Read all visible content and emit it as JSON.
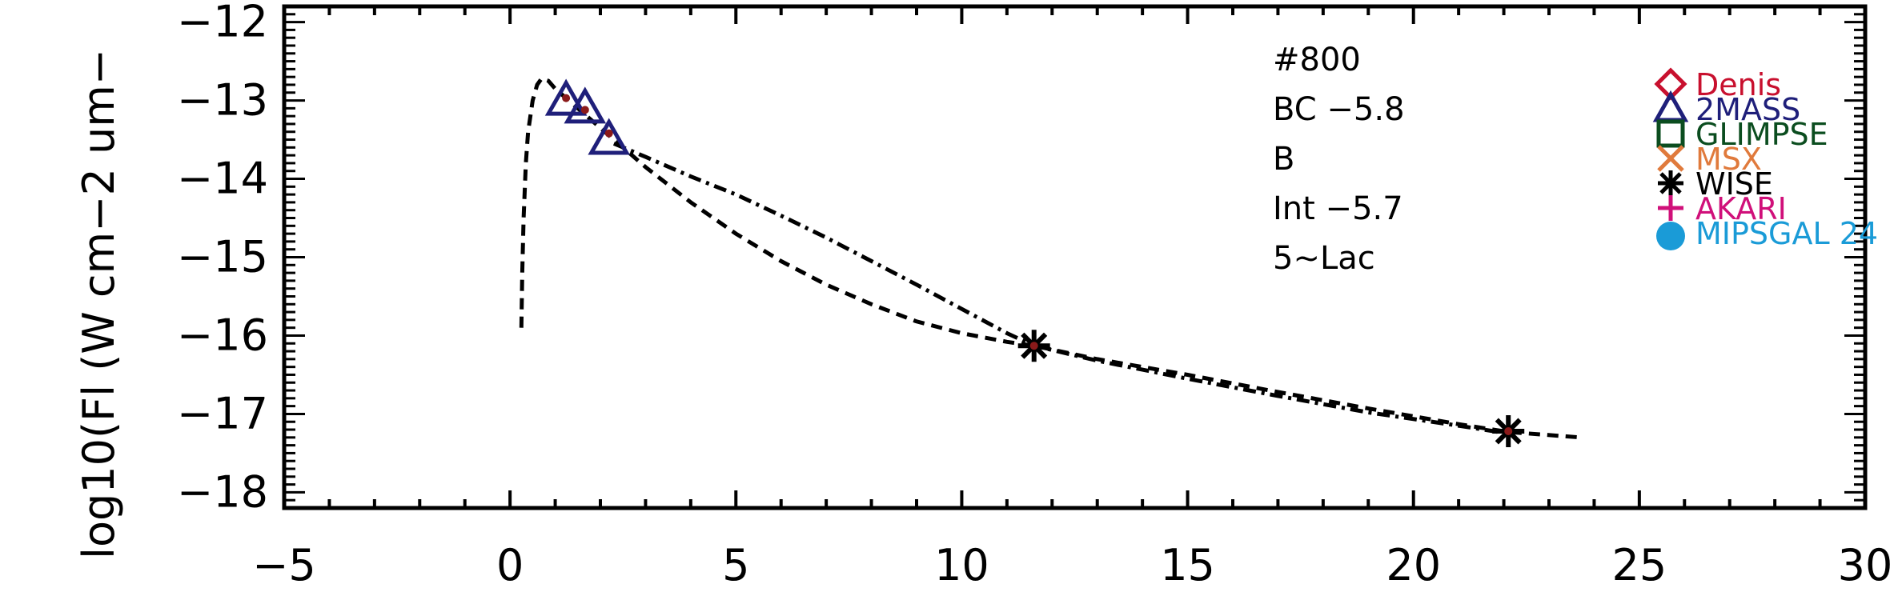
{
  "chart_data": {
    "type": "scatter",
    "title": "",
    "xlabel": "",
    "ylabel": "log10(Fl (W cm−2 um−",
    "xlim": [
      -5,
      30
    ],
    "ylim": [
      -18.2,
      -11.8
    ],
    "x_ticks": [
      -5,
      0,
      5,
      10,
      15,
      20,
      25,
      30
    ],
    "x_tick_labels": [
      "−5",
      "0",
      "5",
      "10",
      "15",
      "20",
      "25",
      "30"
    ],
    "y_ticks": [
      -12,
      -13,
      -14,
      -15,
      -16,
      -17,
      -18
    ],
    "y_tick_labels": [
      "−12",
      "−13",
      "−14",
      "−15",
      "−16",
      "−17",
      "−18"
    ],
    "grid": false,
    "annotations": [
      "#800",
      "BC  −5.8",
      "B",
      "Int  −5.7",
      "5~Lac"
    ],
    "legend_placement": "top-right",
    "legend": [
      {
        "label": "Denis",
        "marker": "diamond",
        "color": "#c8102e"
      },
      {
        "label": "2MASS",
        "marker": "triangle",
        "color": "#1f1f7a"
      },
      {
        "label": "GLIMPSE",
        "marker": "square",
        "color": "#0b4d1f"
      },
      {
        "label": "MSX",
        "marker": "x",
        "color": "#e07a3c"
      },
      {
        "label": "WISE",
        "marker": "asterisk",
        "color": "#000000"
      },
      {
        "label": "AKARI",
        "marker": "plus",
        "color": "#d0107a"
      },
      {
        "label": "MIPSGAL 24",
        "marker": "circle",
        "color": "#1a9bd7"
      }
    ],
    "series": [
      {
        "kind": "line",
        "dash": "dashed",
        "x": [
          0.25,
          0.27,
          0.3,
          0.35,
          0.4,
          0.5,
          0.6,
          0.7,
          0.85,
          1.0,
          1.3,
          1.6,
          2.0,
          2.5,
          3.0,
          4.0,
          5.0,
          6.0,
          7.0,
          8.0,
          9.0,
          10.0,
          11.0,
          11.6,
          13.0,
          15.0,
          17.0,
          19.0,
          21.0,
          22.1,
          23.7
        ],
        "y": [
          -15.9,
          -15.2,
          -14.5,
          -13.8,
          -13.4,
          -13.0,
          -12.8,
          -12.72,
          -12.75,
          -12.85,
          -13.0,
          -13.15,
          -13.35,
          -13.6,
          -13.85,
          -14.3,
          -14.7,
          -15.05,
          -15.35,
          -15.6,
          -15.82,
          -15.97,
          -16.08,
          -16.13,
          -16.3,
          -16.5,
          -16.72,
          -16.93,
          -17.13,
          -17.23,
          -17.3
        ]
      },
      {
        "kind": "line",
        "dash": "dashdot",
        "x": [
          2.3,
          3.0,
          4.0,
          5.0,
          6.0,
          7.0,
          8.0,
          9.0,
          10.0,
          11.0,
          11.6,
          13.0,
          15.0,
          17.0,
          19.0,
          21.0,
          22.1
        ],
        "y": [
          -13.55,
          -13.72,
          -13.97,
          -14.2,
          -14.47,
          -14.75,
          -15.05,
          -15.35,
          -15.66,
          -15.97,
          -16.13,
          -16.32,
          -16.55,
          -16.77,
          -16.98,
          -17.15,
          -17.25
        ]
      },
      {
        "kind": "points",
        "name": "2MASS",
        "marker": "triangle",
        "color": "#1f1f7a",
        "x": [
          1.24,
          1.66,
          2.19
        ],
        "y": [
          -13.0,
          -13.1,
          -13.5
        ]
      },
      {
        "kind": "points",
        "name": "WISE",
        "marker": "asterisk",
        "color": "#000000",
        "x": [
          11.6,
          22.1
        ],
        "y": [
          -16.13,
          -17.22
        ]
      },
      {
        "kind": "points",
        "name": "fit",
        "marker": "dot",
        "color": "#8b1a1a",
        "x": [
          1.24,
          1.66,
          2.19,
          11.6,
          22.1
        ],
        "y": [
          -12.97,
          -13.12,
          -13.42,
          -16.13,
          -17.22
        ]
      }
    ]
  }
}
